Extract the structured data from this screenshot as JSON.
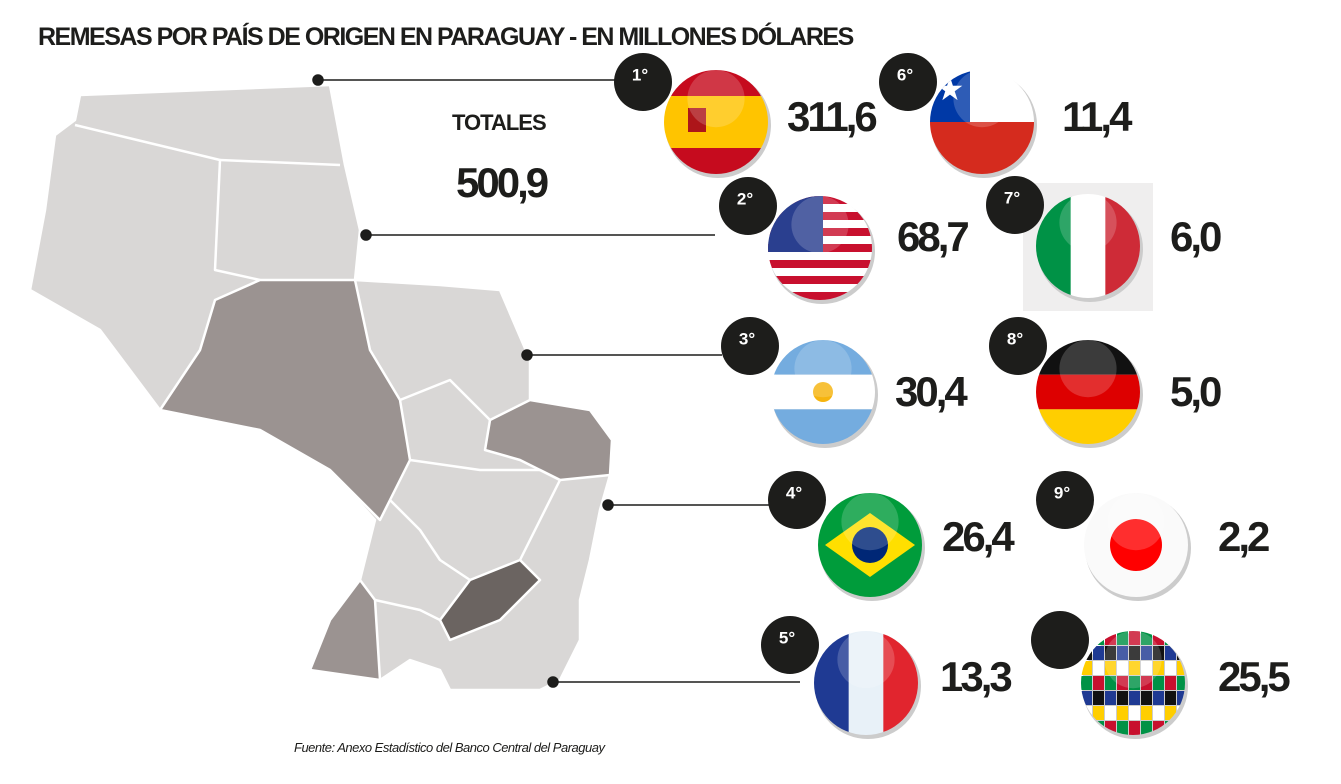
{
  "title": "REMESAS POR PAÍS DE ORIGEN EN PARAGUAY - EN MILLONES DÓLARES",
  "totals": {
    "label": "TOTALES",
    "value": "500,9"
  },
  "ranking": [
    {
      "rank": "1°",
      "value": "311,6"
    },
    {
      "rank": "2°",
      "value": "68,7"
    },
    {
      "rank": "3°",
      "value": "30,4"
    },
    {
      "rank": "4°",
      "value": "26,4"
    },
    {
      "rank": "5°",
      "value": "13,3"
    },
    {
      "rank": "6°",
      "value": "11,4"
    },
    {
      "rank": "7°",
      "value": "6,0"
    },
    {
      "rank": "8°",
      "value": "5,0"
    },
    {
      "rank": "9°",
      "value": "2,2"
    },
    {
      "value": "25,5"
    }
  ],
  "source": "Fuente:  Anexo Estadístico del Banco Central del Paraguay"
}
